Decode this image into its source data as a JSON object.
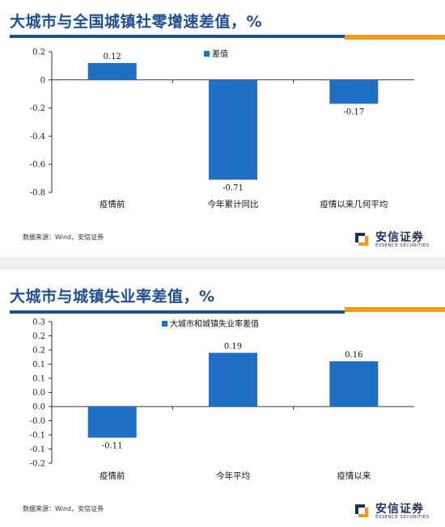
{
  "panels": [
    {
      "title": "大城市与全国城镇社零增速差值，%",
      "source": "数据来源：Wind，安信证券"
    },
    {
      "title": "大城市与城镇失业率差值，%",
      "source": "数据来源：Wind，安信证券"
    }
  ],
  "logo": {
    "name": "安信证券",
    "sub": "ESSENCE SECURITIES"
  },
  "colors": {
    "bar": "#1f6fc5",
    "title": "#1f4e91",
    "accent": "#f39a1e"
  },
  "chart_data": [
    {
      "type": "bar",
      "categories": [
        "疫情前",
        "今年累计同比",
        "疫情以来几何平均"
      ],
      "series": [
        {
          "name": "差值",
          "values": [
            0.12,
            -0.71,
            -0.17
          ]
        }
      ],
      "data_labels": [
        "0.12",
        "-0.71",
        "-0.17"
      ],
      "ylim": [
        -0.8,
        0.2
      ],
      "yticks": [
        0.2,
        0,
        -0.2,
        -0.4,
        -0.6,
        -0.8
      ],
      "ytick_labels": [
        "0.2",
        "0",
        "-0.2",
        "-0.4",
        "-0.6",
        "-0.8"
      ],
      "legend": "top-center",
      "grid": false
    },
    {
      "type": "bar",
      "categories": [
        "疫情前",
        "今年平均",
        "疫情以来"
      ],
      "series": [
        {
          "name": "大城市和城镇失业率差值",
          "values": [
            -0.11,
            0.19,
            0.16
          ]
        }
      ],
      "data_labels": [
        "-0.11",
        "0.19",
        "0.16"
      ],
      "ylim": [
        -0.2,
        0.3
      ],
      "yticks": [
        0.3,
        0.25,
        0.2,
        0.15,
        0.1,
        0.05,
        0,
        -0.05,
        -0.1,
        -0.15,
        -0.2
      ],
      "ytick_labels": [
        "0.3",
        "0.2",
        "0.2",
        "0.1",
        "0.1",
        "0.0",
        "0.0",
        "-0.0",
        "-0.1",
        "-0.1",
        "-0.2"
      ],
      "legend": "top-center",
      "grid": false
    }
  ]
}
